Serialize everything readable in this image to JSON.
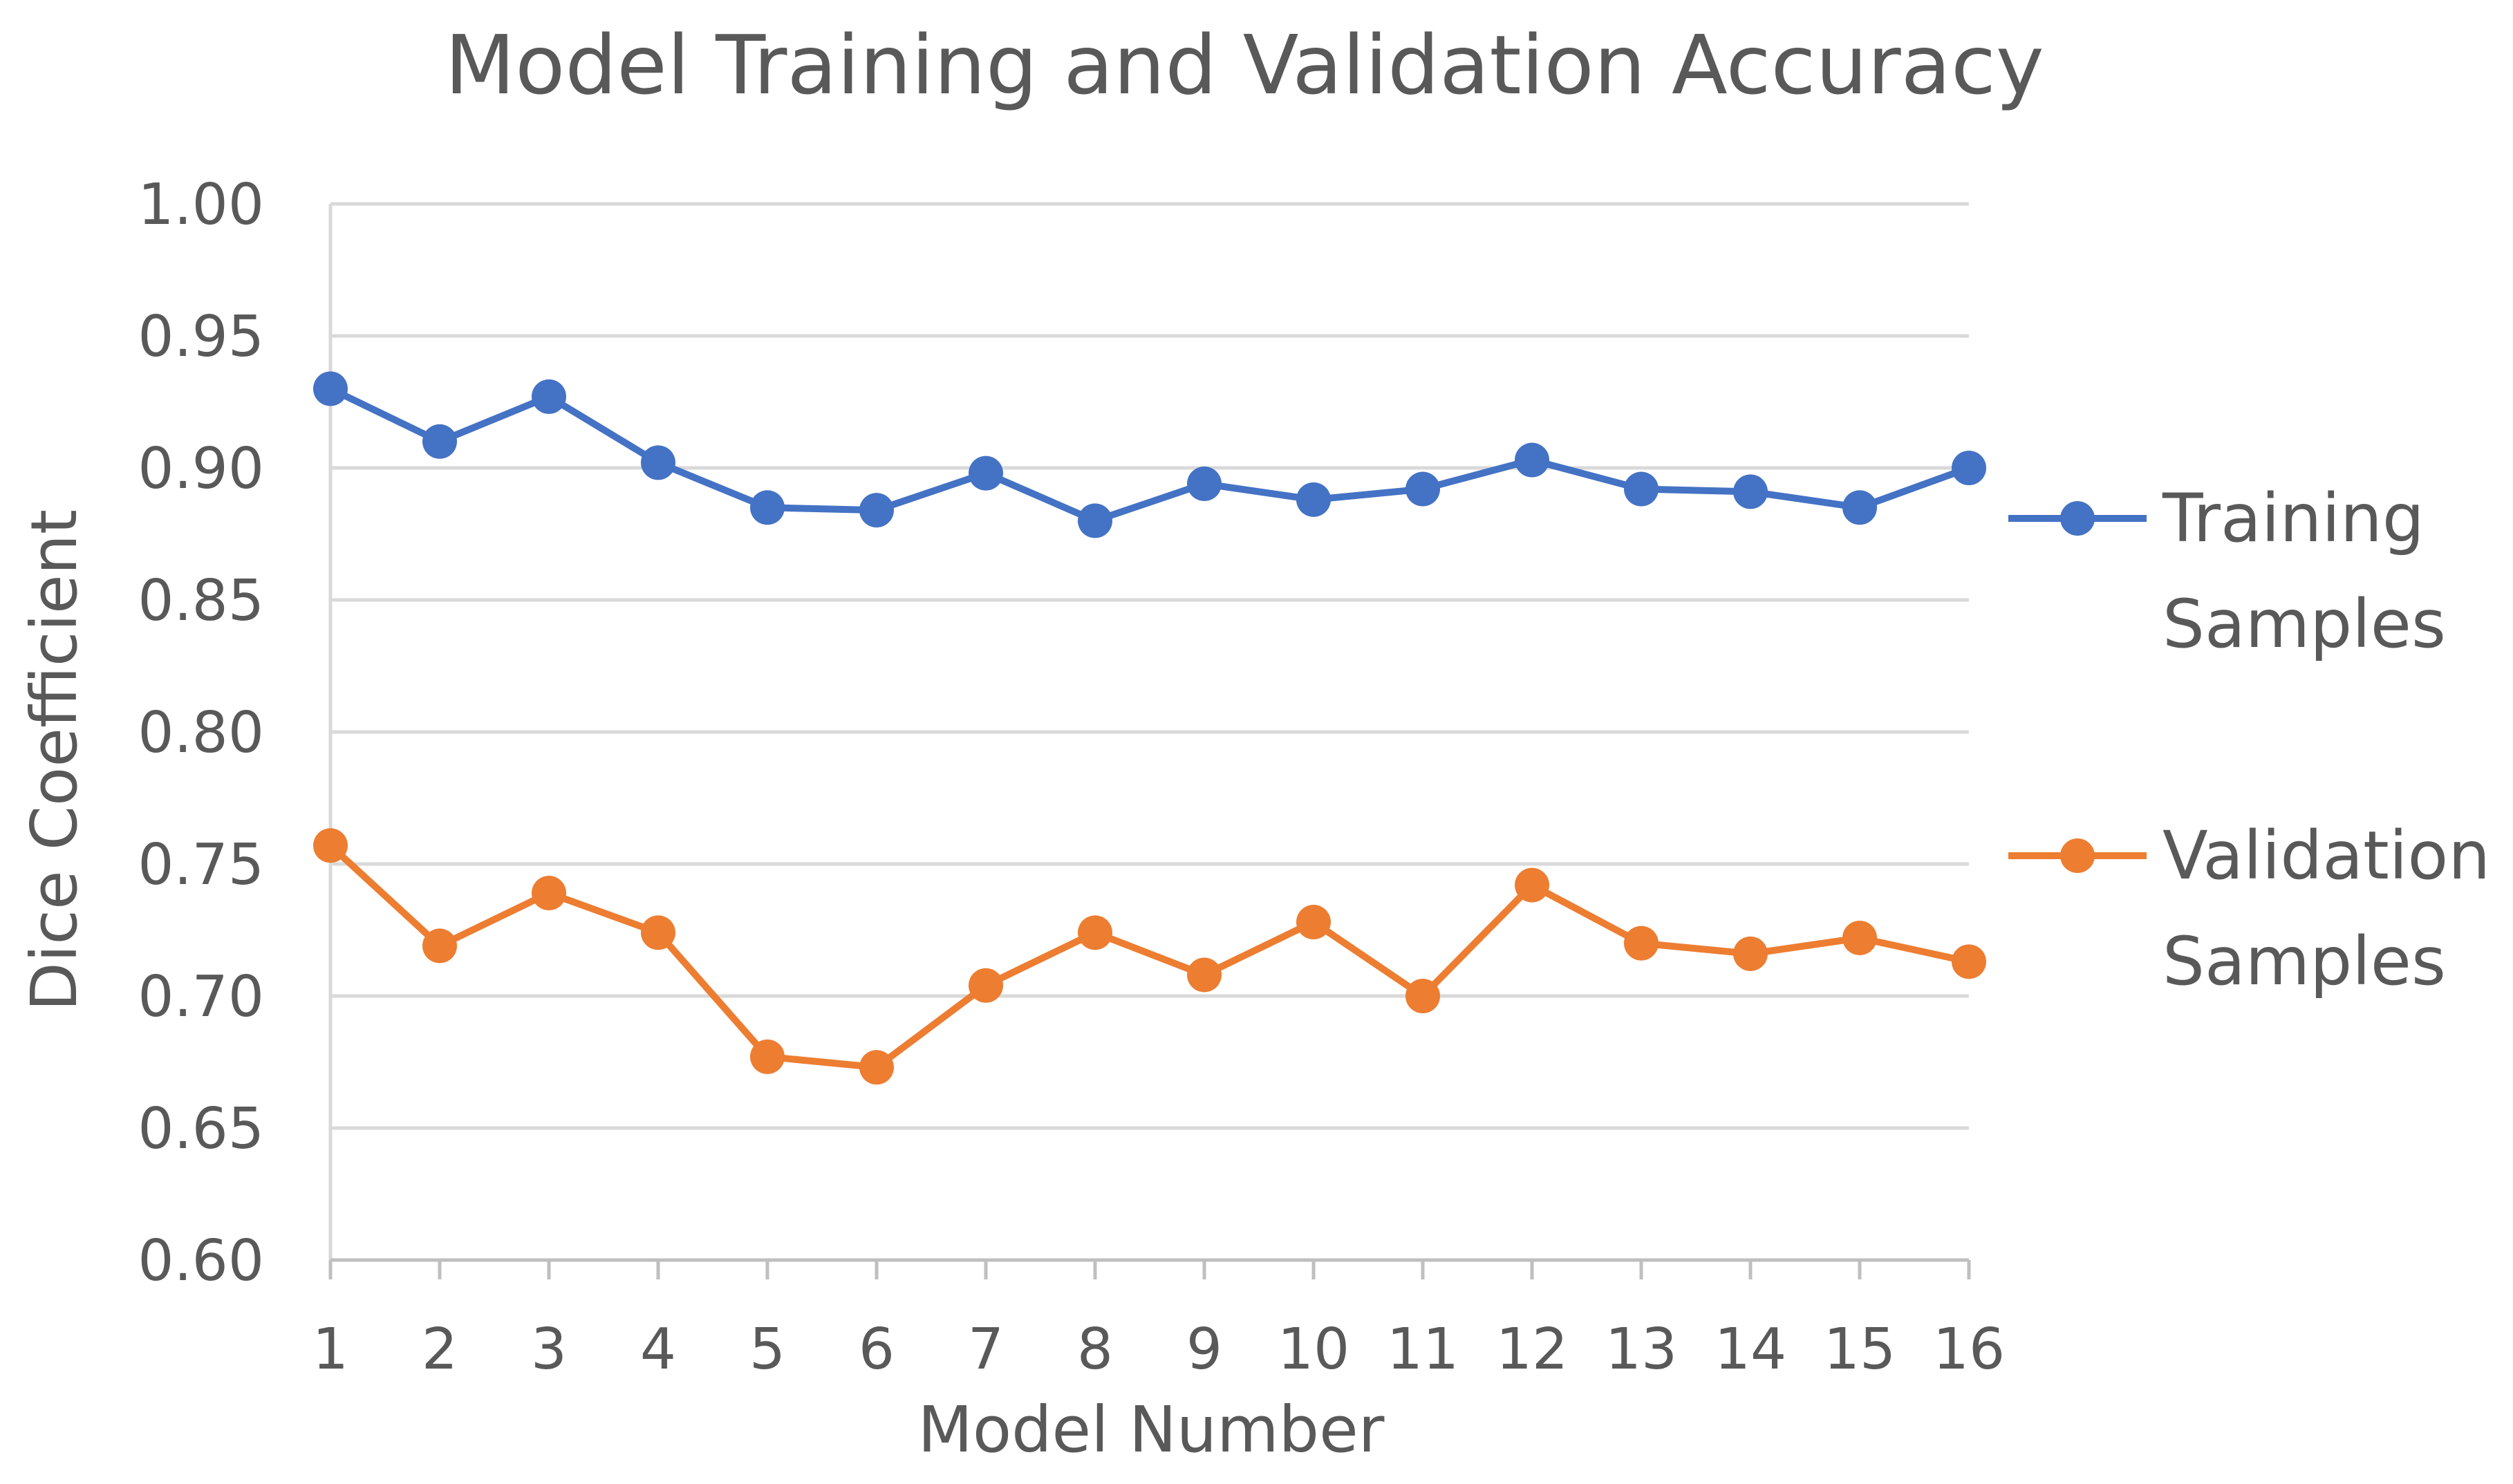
{
  "chart_data": {
    "type": "line",
    "title": "Model Training and Validation Accuracy",
    "xlabel": "Model Number",
    "ylabel": "Dice Coefficient",
    "ylim": [
      0.6,
      1.0
    ],
    "ytick_step": 0.05,
    "yticks": [
      "0.60",
      "0.65",
      "0.70",
      "0.75",
      "0.80",
      "0.85",
      "0.90",
      "0.95",
      "1.00"
    ],
    "grid": true,
    "legend_position": "right",
    "categories": [
      "1",
      "2",
      "3",
      "4",
      "5",
      "6",
      "7",
      "8",
      "9",
      "10",
      "11",
      "12",
      "13",
      "14",
      "15",
      "16"
    ],
    "series": [
      {
        "name": "Training Samples",
        "legend_lines": [
          "Training",
          "Samples"
        ],
        "color": "#4472C4",
        "values": [
          0.93,
          0.91,
          0.927,
          0.902,
          0.885,
          0.884,
          0.898,
          0.88,
          0.894,
          0.888,
          0.892,
          0.903,
          0.892,
          0.891,
          0.885,
          0.9
        ]
      },
      {
        "name": "Validation Samples",
        "legend_lines": [
          "Validation",
          "Samples"
        ],
        "color": "#ED7D31",
        "values": [
          0.757,
          0.719,
          0.739,
          0.724,
          0.677,
          0.673,
          0.704,
          0.724,
          0.708,
          0.728,
          0.7,
          0.742,
          0.72,
          0.716,
          0.722,
          0.713
        ]
      }
    ]
  }
}
